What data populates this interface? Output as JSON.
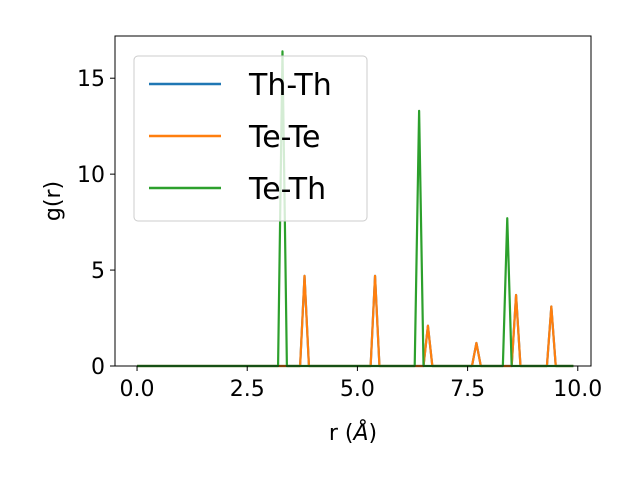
{
  "chart_data": {
    "type": "line",
    "xlabel": "r (",
    "xlabel_unit": "Å",
    "xlabel_close": ")",
    "ylabel": "g(r)",
    "xlim": [
      -0.5,
      10.3
    ],
    "ylim": [
      0,
      17.2
    ],
    "xticks": [
      0.0,
      2.5,
      5.0,
      7.5,
      10.0
    ],
    "xtick_labels": [
      "0.0",
      "2.5",
      "5.0",
      "7.5",
      "10.0"
    ],
    "yticks": [
      0,
      5,
      10,
      15
    ],
    "ytick_labels": [
      "0",
      "5",
      "10",
      "15"
    ],
    "grid": false,
    "legend_position": "top-left",
    "series": [
      {
        "name": "Th-Th",
        "color": "#1f77b4",
        "x": [
          0.0,
          3.7,
          3.8,
          3.9,
          5.3,
          5.4,
          5.5,
          6.5,
          6.6,
          6.7,
          7.6,
          7.7,
          7.8,
          8.5,
          8.6,
          8.7,
          9.3,
          9.4,
          9.5,
          9.9
        ],
        "y": [
          0.0,
          0.0,
          4.7,
          0.0,
          0.0,
          4.7,
          0.0,
          0.0,
          2.1,
          0.0,
          0.0,
          1.2,
          0.0,
          0.0,
          3.7,
          0.0,
          0.0,
          3.1,
          0.0,
          0.0
        ]
      },
      {
        "name": "Te-Te",
        "color": "#ff7f0e",
        "x": [
          0.0,
          3.7,
          3.8,
          3.9,
          5.3,
          5.4,
          5.5,
          6.5,
          6.6,
          6.7,
          7.6,
          7.7,
          7.8,
          8.5,
          8.6,
          8.7,
          9.3,
          9.4,
          9.5,
          9.9
        ],
        "y": [
          0.0,
          0.0,
          4.7,
          0.0,
          0.0,
          4.7,
          0.0,
          0.0,
          2.1,
          0.0,
          0.0,
          1.2,
          0.0,
          0.0,
          3.7,
          0.0,
          0.0,
          3.1,
          0.0,
          0.0
        ]
      },
      {
        "name": "Te-Th",
        "color": "#2ca02c",
        "x": [
          0.0,
          3.2,
          3.3,
          3.4,
          6.3,
          6.4,
          6.5,
          8.3,
          8.4,
          8.5,
          9.9
        ],
        "y": [
          0.0,
          0.0,
          16.4,
          0.0,
          0.0,
          13.3,
          0.0,
          0.0,
          7.7,
          0.0,
          0.0
        ]
      }
    ]
  }
}
